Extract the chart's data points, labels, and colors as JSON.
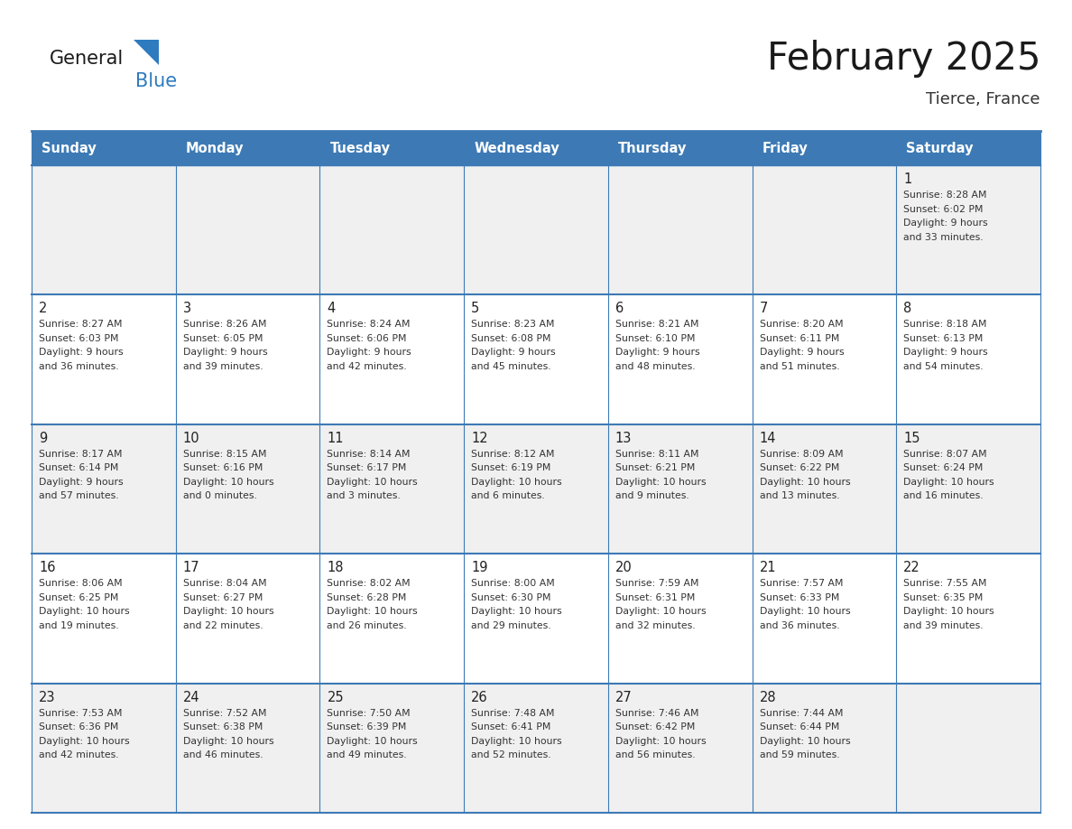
{
  "title": "February 2025",
  "subtitle": "Tierce, France",
  "days_of_week": [
    "Sunday",
    "Monday",
    "Tuesday",
    "Wednesday",
    "Thursday",
    "Friday",
    "Saturday"
  ],
  "header_bg": "#3d7ab5",
  "header_text": "#ffffff",
  "cell_bg_odd": "#f0f0f0",
  "cell_bg_even": "#ffffff",
  "border_color": "#3d7ab5",
  "day_num_color": "#222222",
  "info_color": "#333333",
  "title_color": "#1a1a1a",
  "subtitle_color": "#333333",
  "logo_general_color": "#1a1a1a",
  "logo_blue_color": "#2e7bbf",
  "weeks": [
    [
      null,
      null,
      null,
      null,
      null,
      null,
      1
    ],
    [
      2,
      3,
      4,
      5,
      6,
      7,
      8
    ],
    [
      9,
      10,
      11,
      12,
      13,
      14,
      15
    ],
    [
      16,
      17,
      18,
      19,
      20,
      21,
      22
    ],
    [
      23,
      24,
      25,
      26,
      27,
      28,
      null
    ]
  ],
  "day_data": {
    "1": {
      "sunrise": "8:28 AM",
      "sunset": "6:02 PM",
      "daylight_h": "9 hours",
      "daylight_m": "and 33 minutes."
    },
    "2": {
      "sunrise": "8:27 AM",
      "sunset": "6:03 PM",
      "daylight_h": "9 hours",
      "daylight_m": "and 36 minutes."
    },
    "3": {
      "sunrise": "8:26 AM",
      "sunset": "6:05 PM",
      "daylight_h": "9 hours",
      "daylight_m": "and 39 minutes."
    },
    "4": {
      "sunrise": "8:24 AM",
      "sunset": "6:06 PM",
      "daylight_h": "9 hours",
      "daylight_m": "and 42 minutes."
    },
    "5": {
      "sunrise": "8:23 AM",
      "sunset": "6:08 PM",
      "daylight_h": "9 hours",
      "daylight_m": "and 45 minutes."
    },
    "6": {
      "sunrise": "8:21 AM",
      "sunset": "6:10 PM",
      "daylight_h": "9 hours",
      "daylight_m": "and 48 minutes."
    },
    "7": {
      "sunrise": "8:20 AM",
      "sunset": "6:11 PM",
      "daylight_h": "9 hours",
      "daylight_m": "and 51 minutes."
    },
    "8": {
      "sunrise": "8:18 AM",
      "sunset": "6:13 PM",
      "daylight_h": "9 hours",
      "daylight_m": "and 54 minutes."
    },
    "9": {
      "sunrise": "8:17 AM",
      "sunset": "6:14 PM",
      "daylight_h": "9 hours",
      "daylight_m": "and 57 minutes."
    },
    "10": {
      "sunrise": "8:15 AM",
      "sunset": "6:16 PM",
      "daylight_h": "10 hours",
      "daylight_m": "and 0 minutes."
    },
    "11": {
      "sunrise": "8:14 AM",
      "sunset": "6:17 PM",
      "daylight_h": "10 hours",
      "daylight_m": "and 3 minutes."
    },
    "12": {
      "sunrise": "8:12 AM",
      "sunset": "6:19 PM",
      "daylight_h": "10 hours",
      "daylight_m": "and 6 minutes."
    },
    "13": {
      "sunrise": "8:11 AM",
      "sunset": "6:21 PM",
      "daylight_h": "10 hours",
      "daylight_m": "and 9 minutes."
    },
    "14": {
      "sunrise": "8:09 AM",
      "sunset": "6:22 PM",
      "daylight_h": "10 hours",
      "daylight_m": "and 13 minutes."
    },
    "15": {
      "sunrise": "8:07 AM",
      "sunset": "6:24 PM",
      "daylight_h": "10 hours",
      "daylight_m": "and 16 minutes."
    },
    "16": {
      "sunrise": "8:06 AM",
      "sunset": "6:25 PM",
      "daylight_h": "10 hours",
      "daylight_m": "and 19 minutes."
    },
    "17": {
      "sunrise": "8:04 AM",
      "sunset": "6:27 PM",
      "daylight_h": "10 hours",
      "daylight_m": "and 22 minutes."
    },
    "18": {
      "sunrise": "8:02 AM",
      "sunset": "6:28 PM",
      "daylight_h": "10 hours",
      "daylight_m": "and 26 minutes."
    },
    "19": {
      "sunrise": "8:00 AM",
      "sunset": "6:30 PM",
      "daylight_h": "10 hours",
      "daylight_m": "and 29 minutes."
    },
    "20": {
      "sunrise": "7:59 AM",
      "sunset": "6:31 PM",
      "daylight_h": "10 hours",
      "daylight_m": "and 32 minutes."
    },
    "21": {
      "sunrise": "7:57 AM",
      "sunset": "6:33 PM",
      "daylight_h": "10 hours",
      "daylight_m": "and 36 minutes."
    },
    "22": {
      "sunrise": "7:55 AM",
      "sunset": "6:35 PM",
      "daylight_h": "10 hours",
      "daylight_m": "and 39 minutes."
    },
    "23": {
      "sunrise": "7:53 AM",
      "sunset": "6:36 PM",
      "daylight_h": "10 hours",
      "daylight_m": "and 42 minutes."
    },
    "24": {
      "sunrise": "7:52 AM",
      "sunset": "6:38 PM",
      "daylight_h": "10 hours",
      "daylight_m": "and 46 minutes."
    },
    "25": {
      "sunrise": "7:50 AM",
      "sunset": "6:39 PM",
      "daylight_h": "10 hours",
      "daylight_m": "and 49 minutes."
    },
    "26": {
      "sunrise": "7:48 AM",
      "sunset": "6:41 PM",
      "daylight_h": "10 hours",
      "daylight_m": "and 52 minutes."
    },
    "27": {
      "sunrise": "7:46 AM",
      "sunset": "6:42 PM",
      "daylight_h": "10 hours",
      "daylight_m": "and 56 minutes."
    },
    "28": {
      "sunrise": "7:44 AM",
      "sunset": "6:44 PM",
      "daylight_h": "10 hours",
      "daylight_m": "and 59 minutes."
    }
  }
}
